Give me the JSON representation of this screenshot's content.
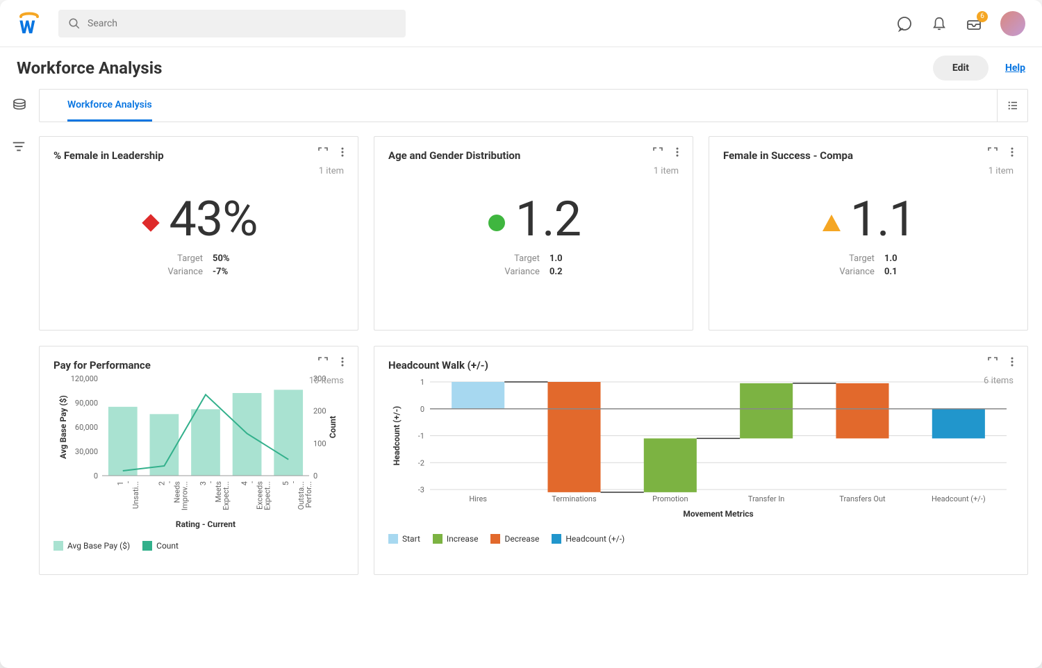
{
  "header": {
    "search_placeholder": "Search",
    "inbox_badge": "6"
  },
  "page": {
    "title": "Workforce Analysis",
    "edit_label": "Edit",
    "help_label": "Help",
    "tab_label": "Workforce Analysis"
  },
  "kpi_cards": [
    {
      "title": "% Female in Leadership",
      "items_label": "1 item",
      "shape": "diamond",
      "shape_color": "#de2b2b",
      "value": "43%",
      "target_label": "Target",
      "target_value": "50%",
      "variance_label": "Variance",
      "variance_value": "-7%"
    },
    {
      "title": "Age and Gender Distribution",
      "items_label": "1 item",
      "shape": "circle",
      "shape_color": "#3fb63f",
      "value": "1.2",
      "target_label": "Target",
      "target_value": "1.0",
      "variance_label": "Variance",
      "variance_value": "0.2"
    },
    {
      "title": "Female in Success - Compa",
      "items_label": "1 item",
      "shape": "triangle",
      "shape_color": "#f5a623",
      "value": "1.1",
      "target_label": "Target",
      "target_value": "1.0",
      "variance_label": "Variance",
      "variance_value": "0.1"
    }
  ],
  "pay_chart": {
    "title": "Pay for Performance",
    "items_label": "10 items",
    "type": "bar+line",
    "y1_label": "Avg Base Pay ($)",
    "y2_label": "Count",
    "x_label": "Rating - Current",
    "bar_color": "#a9e2d1",
    "line_color": "#32b08b",
    "categories": [
      "1 - Unsati...",
      "2 - Needs Improv...",
      "3 - Meets Expect...",
      "4 - Exceeds Expect...",
      "5 - Outsta... Perfor..."
    ],
    "bars": [
      85000,
      76000,
      82000,
      102000,
      106000
    ],
    "line": [
      15,
      30,
      250,
      130,
      50
    ],
    "y1_max": 120000,
    "y1_step": 30000,
    "y2_max": 300,
    "y2_step": 100,
    "legend": [
      {
        "label": "Avg Base Pay ($)",
        "color": "#a9e2d1"
      },
      {
        "label": "Count",
        "color": "#32b08b"
      }
    ]
  },
  "headcount_chart": {
    "title": "Headcount Walk (+/-)",
    "items_label": "6 items",
    "type": "waterfall",
    "y_label": "Headcount (+/-)",
    "x_label": "Movement Metrics",
    "y_min": -3,
    "y_max": 1,
    "y_step": 1,
    "grid_color": "#d9d9d9",
    "bars": [
      {
        "label": "Hires",
        "from": 0,
        "to": 1,
        "color": "#a7d8f0",
        "role": "start"
      },
      {
        "label": "Terminations",
        "from": 1,
        "to": -3.1,
        "color": "#e2692c",
        "role": "decrease"
      },
      {
        "label": "Promotion",
        "from": -3.1,
        "to": -1.1,
        "color": "#7cb342",
        "role": "increase"
      },
      {
        "label": "Transfer In",
        "from": -1.1,
        "to": 0.95,
        "color": "#7cb342",
        "role": "increase"
      },
      {
        "label": "Transfers Out",
        "from": 0.95,
        "to": -1.1,
        "color": "#e2692c",
        "role": "decrease"
      },
      {
        "label": "Headcount (+/-)",
        "from": 0,
        "to": -1.1,
        "color": "#2196cc",
        "role": "total"
      }
    ],
    "legend": [
      {
        "label": "Start",
        "color": "#a7d8f0"
      },
      {
        "label": "Increase",
        "color": "#7cb342"
      },
      {
        "label": "Decrease",
        "color": "#e2692c"
      },
      {
        "label": "Headcount (+/-)",
        "color": "#2196cc"
      }
    ]
  }
}
